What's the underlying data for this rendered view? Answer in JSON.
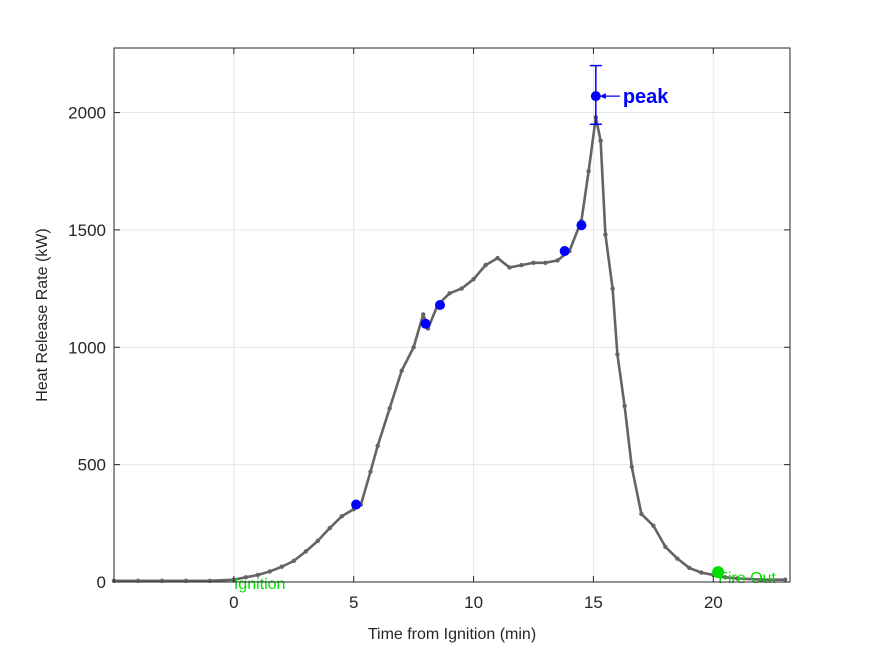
{
  "chart_data": {
    "type": "line",
    "title": "",
    "xlabel": "Time from Ignition (min)",
    "ylabel": "Heat Release Rate (kW)",
    "xlim": [
      -5,
      23.2
    ],
    "ylim": [
      0,
      2275
    ],
    "xticks": [
      0,
      5,
      10,
      15,
      20
    ],
    "yticks": [
      0,
      500,
      1000,
      1500,
      2000
    ],
    "grid": true,
    "colors": {
      "line": "#646464",
      "markers": "#0000ff",
      "events": "#00e000",
      "axes": "#262626",
      "grid": "#e6e6e6"
    },
    "series": [
      {
        "style": "line-with-dots",
        "x": [
          -5,
          -4,
          -3,
          -2,
          -1,
          0,
          0.5,
          1,
          1.5,
          2,
          2.5,
          3,
          3.5,
          4,
          4.5,
          5,
          5.3,
          5.7,
          6,
          6.5,
          7,
          7.5,
          7.9,
          8.1,
          8.5,
          9,
          9.5,
          10,
          10.5,
          11,
          11.5,
          12,
          12.5,
          13,
          13.5,
          14,
          14.5,
          14.8,
          15.1,
          15.3,
          15.5,
          15.8,
          16,
          16.3,
          16.6,
          17,
          17.5,
          18,
          18.5,
          19,
          19.5,
          20,
          20.5,
          21,
          22,
          23
        ],
        "y": [
          5,
          5,
          5,
          5,
          5,
          10,
          20,
          30,
          45,
          65,
          90,
          130,
          175,
          230,
          280,
          310,
          330,
          470,
          580,
          740,
          900,
          1000,
          1140,
          1080,
          1180,
          1230,
          1250,
          1290,
          1350,
          1380,
          1340,
          1350,
          1360,
          1360,
          1370,
          1410,
          1540,
          1750,
          1980,
          1880,
          1480,
          1250,
          970,
          750,
          490,
          290,
          240,
          150,
          100,
          60,
          40,
          30,
          20,
          15,
          10,
          10
        ]
      }
    ],
    "markers": {
      "x": [
        5.1,
        8.0,
        8.6,
        13.8,
        14.5,
        15.1
      ],
      "y": [
        330,
        1100,
        1180,
        1410,
        1520,
        2070
      ]
    },
    "error_bar": {
      "x": 15.1,
      "y": 2070,
      "lower": 1950,
      "upper": 2200
    },
    "events": [
      {
        "label": "Ignition",
        "x": 0,
        "y": 0
      },
      {
        "label": "Fire Out",
        "x": 20.2,
        "y": 25
      }
    ],
    "annotation": {
      "label": "peak",
      "x": 15.1,
      "y": 2070
    }
  }
}
